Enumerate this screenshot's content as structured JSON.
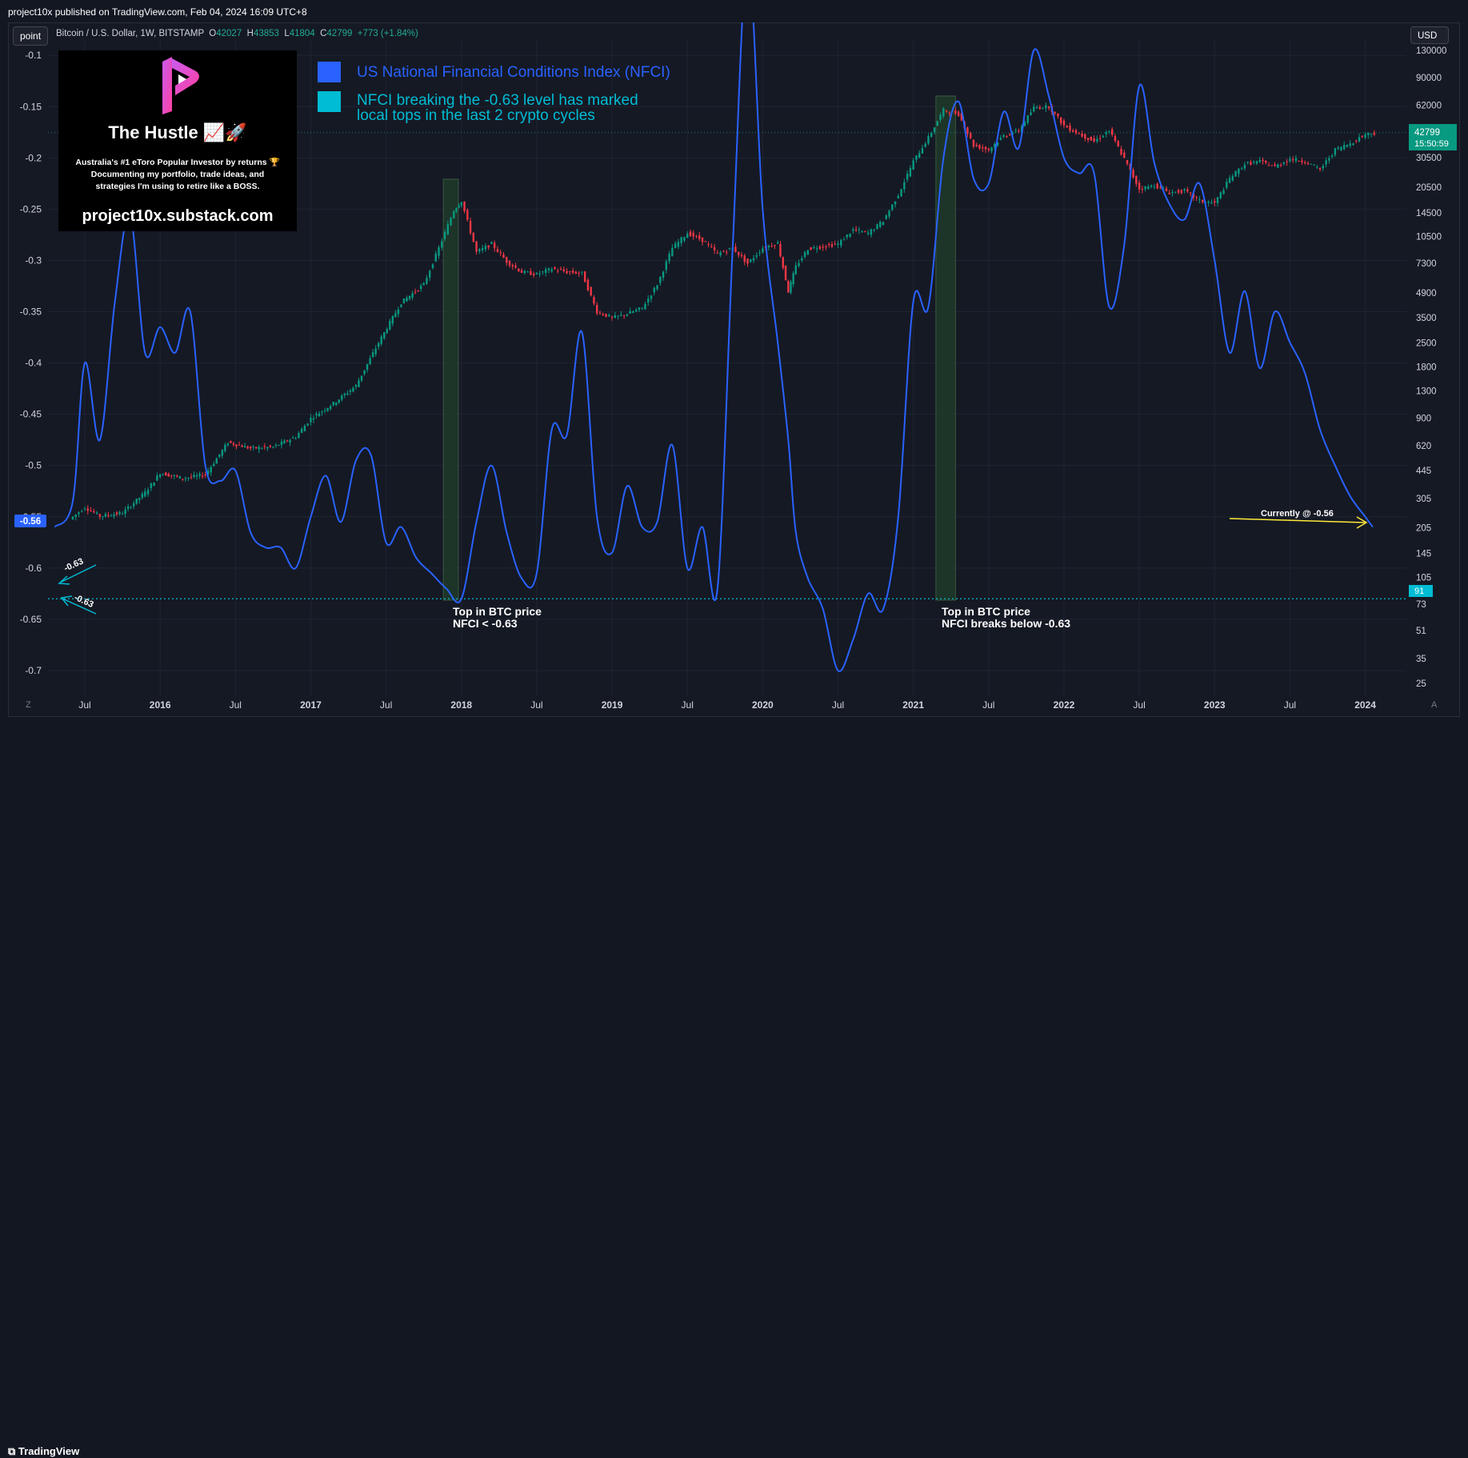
{
  "published_text": "project10x published on TradingView.com, Feb 04, 2024 16:09 UTC+8",
  "toolbar": {
    "point_label": "point",
    "currency_label": "USD"
  },
  "symbol": {
    "name": "Bitcoin / U.S. Dollar, 1W, BITSTAMP",
    "open_key": "O",
    "open": "42027",
    "high_key": "H",
    "high": "43853",
    "low_key": "L",
    "low": "41804",
    "close_key": "C",
    "close": "42799",
    "change": "+773 (+1.84%)"
  },
  "promo": {
    "title": "The Hustle 📈🚀",
    "description": "Australia's #1 eToro Popular Investor by returns 🏆\nDocumenting my portfolio, trade ideas, and\nstrategies I'm using to retire like a BOSS.",
    "url": "project10x.substack.com"
  },
  "legend": [
    {
      "label": "US National Financial Conditions Index (NFCI)",
      "color": "#2962ff"
    },
    {
      "label": "NFCI breaking the -0.63 level has marked\nlocal tops in the last 2 crypto cycles",
      "color": "#00bcd4"
    }
  ],
  "annotations": {
    "top1": "Top in BTC price\nNFCI < -0.63",
    "top2": "Top in BTC price\nNFCI breaks below -0.63",
    "current": "Currently @ -0.56",
    "arrow_up": "-0.63",
    "arrow_down": "-0.63"
  },
  "badges": {
    "left_value": "-0.56",
    "price": "42799",
    "countdown": "15:50:59",
    "right_level": "91"
  },
  "footer": {
    "brand": "TradingView",
    "z_label": "Z",
    "a_label": "A"
  },
  "colors": {
    "nfci_line": "#2962ff",
    "candle_up": "#089981",
    "candle_down": "#f23645",
    "level_line": "#00bcd4",
    "top_shading": "#1e3a2a",
    "price_badge": "#089981",
    "left_badge": "#2962ff",
    "current_arrow": "#ffeb3b"
  },
  "chart_data": {
    "type": "line",
    "x_ticks": [
      "Jul",
      "2016",
      "Jul",
      "2017",
      "Jul",
      "2018",
      "Jul",
      "2019",
      "Jul",
      "2020",
      "Jul",
      "2021",
      "Jul",
      "2022",
      "Jul",
      "2023",
      "Jul",
      "2024"
    ],
    "left_axis": {
      "ticks": [
        "-0.1",
        "-0.15",
        "-0.2",
        "-0.25",
        "-0.3",
        "-0.35",
        "-0.4",
        "-0.45",
        "-0.5",
        "-0.55",
        "-0.6",
        "-0.65",
        "-0.7"
      ],
      "range": [
        -0.725,
        -0.085
      ]
    },
    "right_axis": {
      "scale": "log",
      "ticks": [
        "130000",
        "90000",
        "62000",
        "42500",
        "30500",
        "20500",
        "14500",
        "10500",
        "7300",
        "4900",
        "3500",
        "2500",
        "1800",
        "1300",
        "900",
        "620",
        "445",
        "305",
        "205",
        "145",
        "105",
        "73",
        "51",
        "35",
        "25"
      ]
    },
    "level": -0.63,
    "series": [
      {
        "name": "US National Financial Conditions Index (NFCI)",
        "t": [
          2015.3,
          2015.42,
          2015.5,
          2015.6,
          2015.7,
          2015.8,
          2015.9,
          2016.0,
          2016.1,
          2016.2,
          2016.3,
          2016.4,
          2016.5,
          2016.6,
          2016.7,
          2016.8,
          2016.9,
          2017.0,
          2017.1,
          2017.2,
          2017.3,
          2017.4,
          2017.5,
          2017.6,
          2017.7,
          2017.8,
          2017.9,
          2018.0,
          2018.1,
          2018.2,
          2018.3,
          2018.4,
          2018.5,
          2018.6,
          2018.7,
          2018.8,
          2018.9,
          2019.0,
          2019.1,
          2019.2,
          2019.3,
          2019.4,
          2019.5,
          2019.6,
          2019.7,
          2019.8,
          2019.9,
          2020.0,
          2020.1,
          2020.17,
          2020.22,
          2020.3,
          2020.4,
          2020.5,
          2020.6,
          2020.7,
          2020.8,
          2020.9,
          2021.0,
          2021.1,
          2021.2,
          2021.3,
          2021.4,
          2021.5,
          2021.6,
          2021.7,
          2021.8,
          2021.9,
          2022.0,
          2022.1,
          2022.2,
          2022.3,
          2022.4,
          2022.5,
          2022.6,
          2022.7,
          2022.8,
          2022.9,
          2023.0,
          2023.1,
          2023.2,
          2023.3,
          2023.4,
          2023.5,
          2023.6,
          2023.7,
          2023.8,
          2023.9,
          2024.0,
          2024.05
        ],
        "values": [
          -0.56,
          -0.535,
          -0.4,
          -0.475,
          -0.34,
          -0.255,
          -0.39,
          -0.365,
          -0.39,
          -0.35,
          -0.5,
          -0.515,
          -0.505,
          -0.565,
          -0.58,
          -0.58,
          -0.6,
          -0.55,
          -0.51,
          -0.555,
          -0.495,
          -0.49,
          -0.575,
          -0.56,
          -0.59,
          -0.605,
          -0.62,
          -0.63,
          -0.555,
          -0.5,
          -0.565,
          -0.61,
          -0.605,
          -0.465,
          -0.47,
          -0.37,
          -0.55,
          -0.585,
          -0.52,
          -0.56,
          -0.555,
          -0.48,
          -0.6,
          -0.56,
          -0.62,
          -0.29,
          -0.005,
          -0.25,
          -0.38,
          -0.475,
          -0.565,
          -0.61,
          -0.64,
          -0.7,
          -0.67,
          -0.625,
          -0.64,
          -0.55,
          -0.34,
          -0.345,
          -0.2,
          -0.145,
          -0.22,
          -0.225,
          -0.155,
          -0.19,
          -0.095,
          -0.14,
          -0.2,
          -0.215,
          -0.215,
          -0.345,
          -0.285,
          -0.13,
          -0.205,
          -0.245,
          -0.26,
          -0.225,
          -0.3,
          -0.39,
          -0.33,
          -0.405,
          -0.35,
          -0.38,
          -0.41,
          -0.465,
          -0.5,
          -0.53,
          -0.55,
          -0.56
        ]
      },
      {
        "name": "Bitcoin / U.S. Dollar",
        "t": [
          2015.4,
          2015.5,
          2015.6,
          2015.75,
          2015.9,
          2016.0,
          2016.15,
          2016.3,
          2016.45,
          2016.6,
          2016.75,
          2016.9,
          2017.0,
          2017.15,
          2017.3,
          2017.45,
          2017.6,
          2017.75,
          2017.85,
          2017.95,
          2018.0,
          2018.1,
          2018.2,
          2018.3,
          2018.4,
          2018.5,
          2018.6,
          2018.7,
          2018.8,
          2018.9,
          2019.0,
          2019.1,
          2019.2,
          2019.3,
          2019.4,
          2019.5,
          2019.6,
          2019.7,
          2019.8,
          2019.9,
          2020.0,
          2020.1,
          2020.17,
          2020.22,
          2020.3,
          2020.4,
          2020.5,
          2020.6,
          2020.7,
          2020.8,
          2020.9,
          2021.0,
          2021.1,
          2021.2,
          2021.3,
          2021.4,
          2021.5,
          2021.6,
          2021.7,
          2021.8,
          2021.9,
          2022.0,
          2022.1,
          2022.2,
          2022.3,
          2022.4,
          2022.5,
          2022.6,
          2022.7,
          2022.8,
          2022.9,
          2023.0,
          2023.1,
          2023.2,
          2023.3,
          2023.4,
          2023.5,
          2023.6,
          2023.7,
          2023.8,
          2023.9,
          2024.0,
          2024.08
        ],
        "values": [
          230,
          270,
          240,
          250,
          330,
          430,
          400,
          420,
          650,
          600,
          610,
          700,
          900,
          1100,
          1400,
          2500,
          4300,
          5500,
          9000,
          15000,
          17000,
          8500,
          9500,
          7500,
          6500,
          6300,
          6800,
          6500,
          6400,
          3800,
          3500,
          3700,
          4000,
          5500,
          9000,
          11000,
          10000,
          8300,
          9000,
          7300,
          9000,
          9600,
          5000,
          7000,
          8900,
          9200,
          9500,
          11500,
          11000,
          13000,
          18500,
          29000,
          40000,
          58000,
          55000,
          36000,
          34000,
          41000,
          44000,
          60000,
          61000,
          47000,
          42000,
          38000,
          44000,
          30000,
          20000,
          21000,
          19000,
          19500,
          17000,
          16500,
          23000,
          28000,
          29000,
          27000,
          30000,
          29000,
          26000,
          34000,
          37000,
          42000,
          42799
        ]
      }
    ],
    "highlighted_periods": [
      {
        "from": "2017-11",
        "to": "2018-01",
        "label": "Top in BTC price"
      },
      {
        "from": "2021-03",
        "to": "2021-05",
        "label": "Top in BTC price"
      }
    ]
  }
}
